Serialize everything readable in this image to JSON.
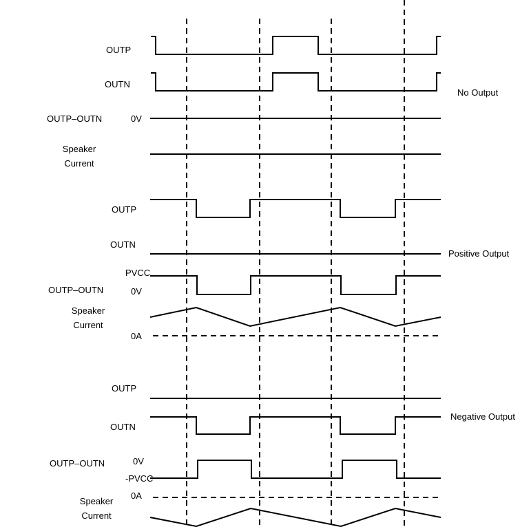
{
  "no_output": {
    "mode_label": "No Output",
    "outp_label": "OUTP",
    "outn_label": "OUTN",
    "diff_label": "OUTP–OUTN",
    "diff_level_0v": "0V",
    "current_label_1": "Speaker",
    "current_label_2": "Current"
  },
  "positive_output": {
    "mode_label": "Positive Output",
    "outp_label": "OUTP",
    "outn_label": "OUTN",
    "diff_label": "OUTP–OUTN",
    "diff_level_high": "PVCC",
    "diff_level_0v": "0V",
    "current_label_1": "Speaker",
    "current_label_2": "Current",
    "current_level_0a": "0A"
  },
  "negative_output": {
    "mode_label": "Negative Output",
    "outp_label": "OUTP",
    "outn_label": "OUTN",
    "diff_label": "OUTP–OUTN",
    "diff_level_0v": "0V",
    "diff_level_low": "-PVCC",
    "current_label_1": "Speaker",
    "current_label_2": "Current",
    "current_level_0a": "0A"
  }
}
